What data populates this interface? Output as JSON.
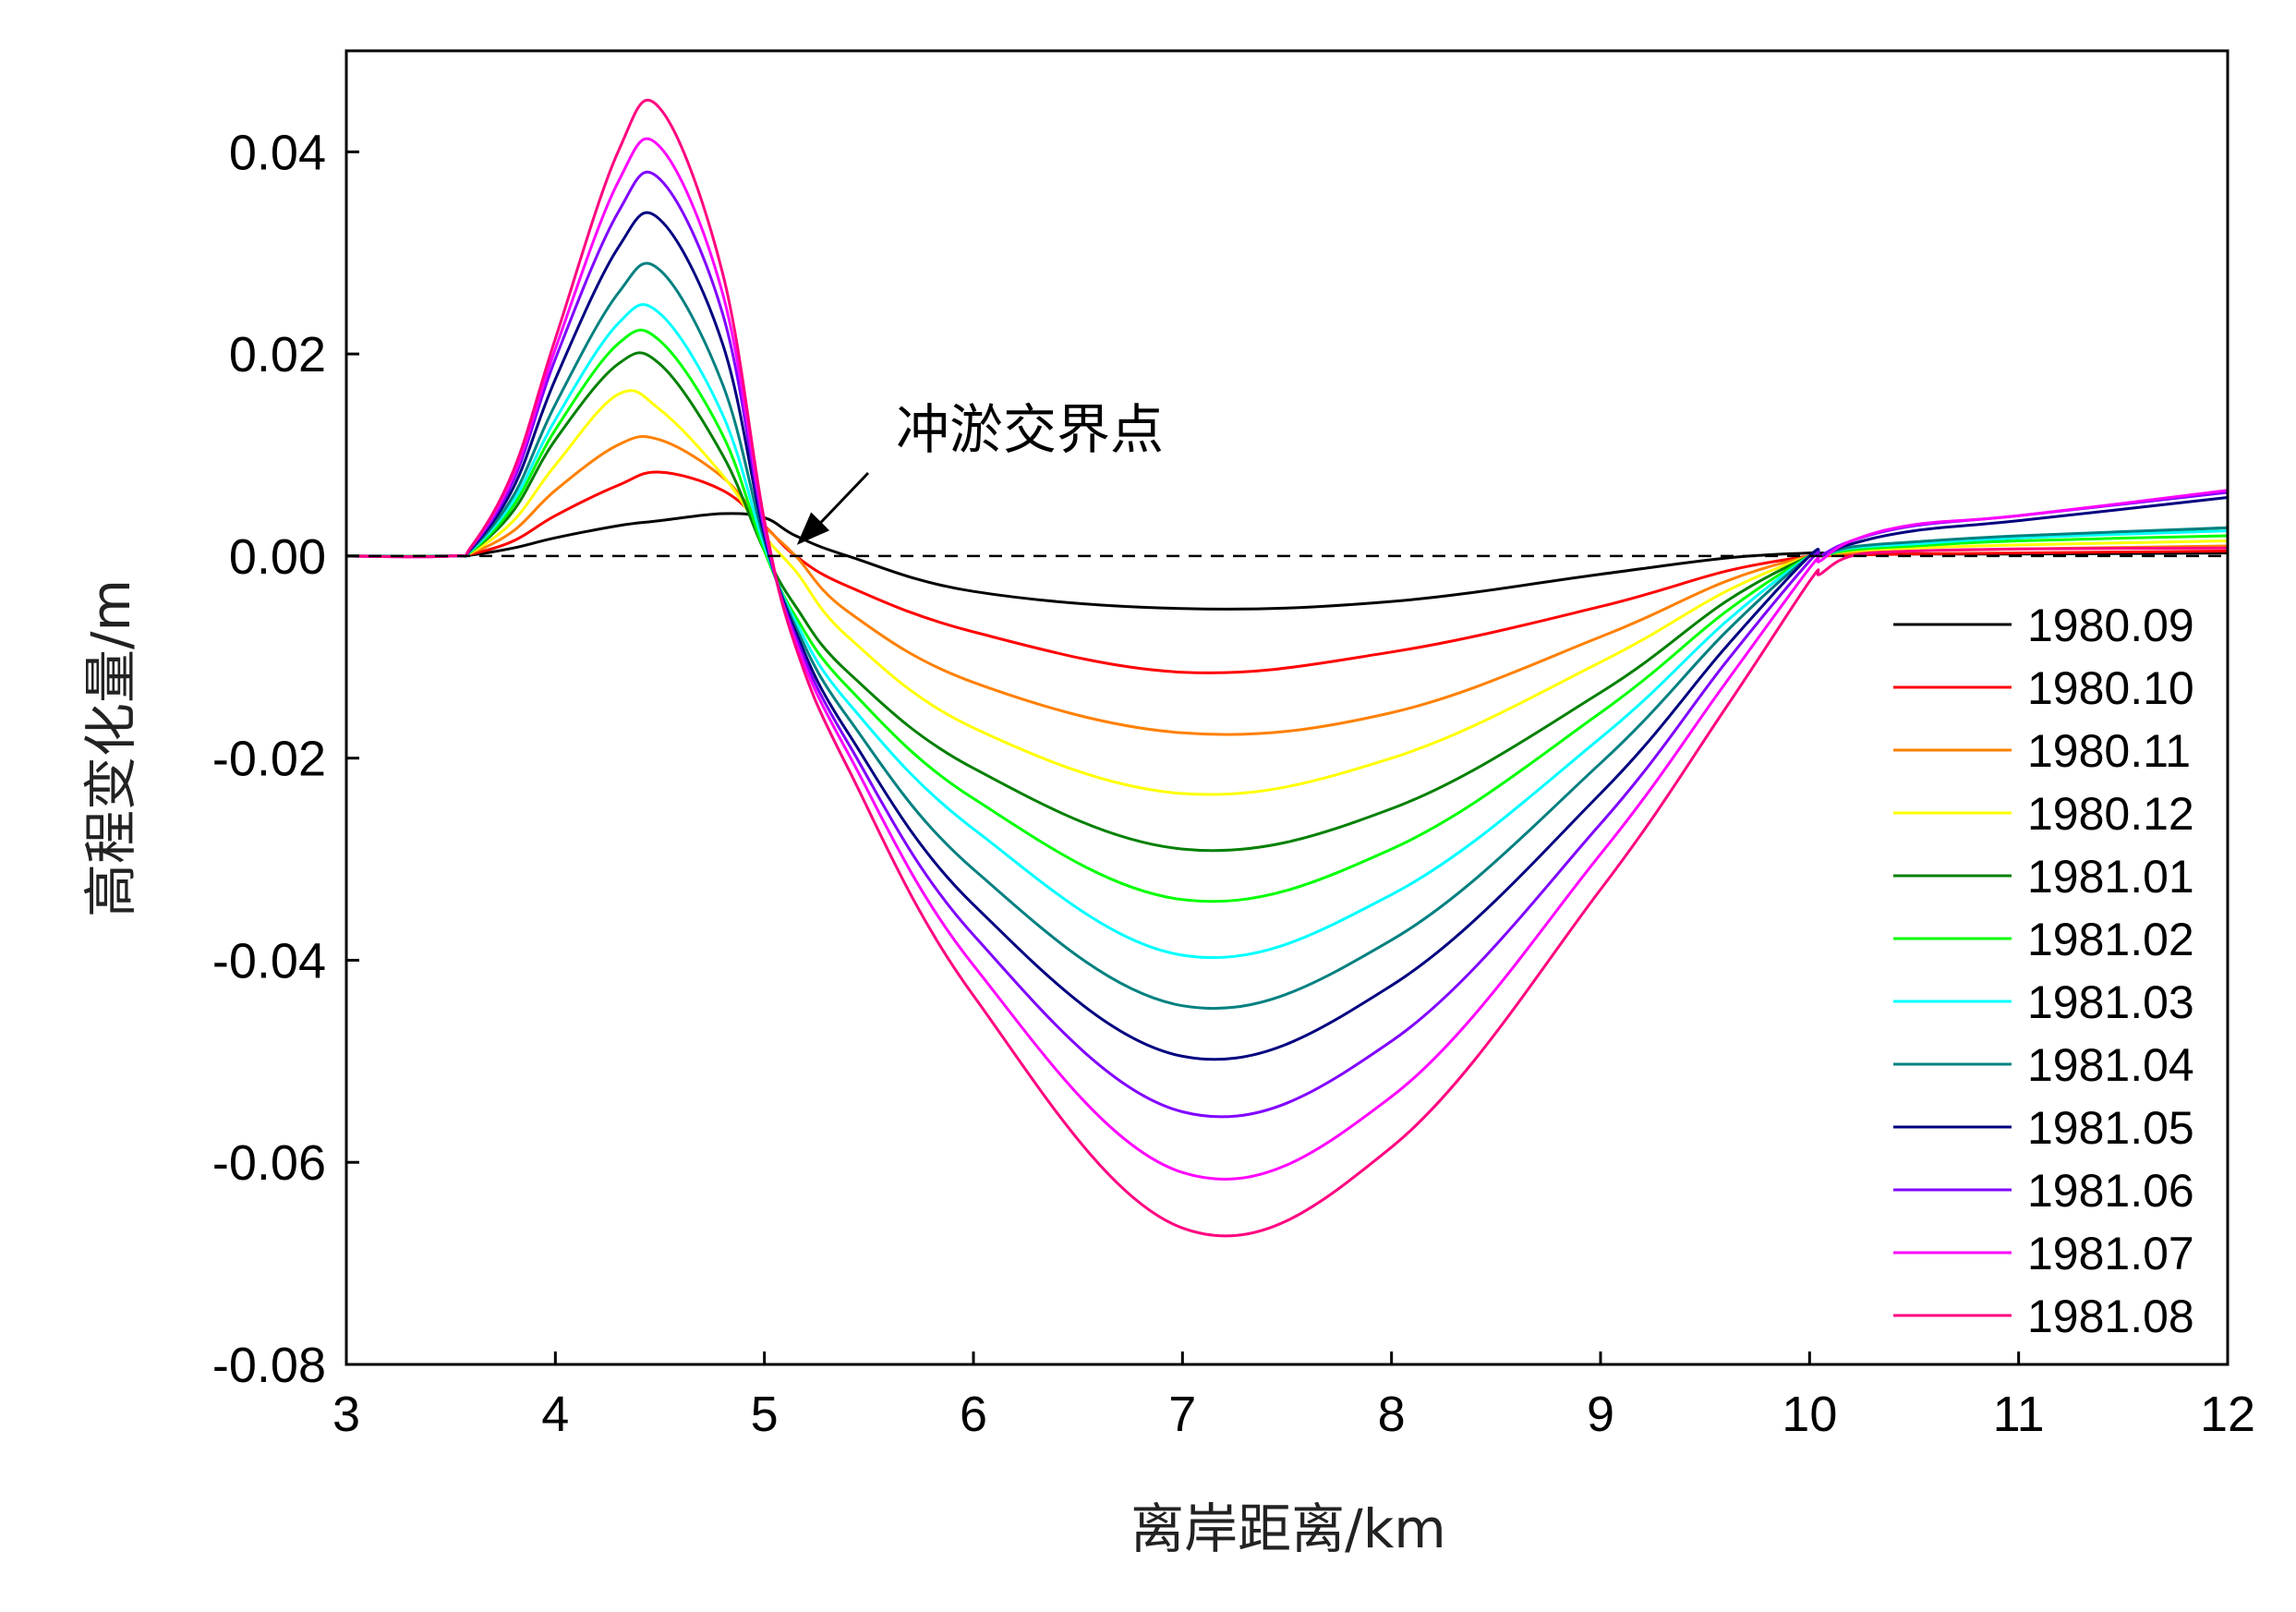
{
  "chart_data": {
    "type": "line",
    "title": "",
    "xlabel": "离岸距离/km",
    "ylabel": "高程变化量/m",
    "xlim": [
      3,
      12
    ],
    "ylim": [
      -0.08,
      0.05
    ],
    "x_ticks": [
      "3",
      "4",
      "5",
      "6",
      "7",
      "8",
      "9",
      "10",
      "11",
      "12"
    ],
    "y_ticks": [
      "0.04",
      "0.02",
      "0.00",
      "-0.02",
      "-0.04",
      "-0.06",
      "-0.08"
    ],
    "y_tick_values": [
      0.04,
      0.02,
      0.0,
      -0.02,
      -0.04,
      -0.06,
      -0.08
    ],
    "grid": false,
    "legend_position": "lower-right",
    "reference_line": {
      "y": 0.0,
      "style": "dashed"
    },
    "annotation": {
      "text": "冲淤交界点",
      "x": 5.12,
      "y": 0.0
    },
    "x": [
      3.0,
      3.5,
      3.6,
      3.8,
      4.0,
      4.3,
      4.5,
      4.8,
      5.0,
      5.15,
      5.4,
      6.0,
      7.0,
      8.0,
      9.0,
      9.6,
      10.0,
      10.05,
      10.2,
      10.5,
      11.0,
      12.0
    ],
    "series": [
      {
        "name": "1980.09",
        "color": "#000000",
        "values": [
          0,
          0,
          0.0001,
          0.0008,
          0.0018,
          0.003,
          0.0035,
          0.0042,
          0.0038,
          0.002,
          0.0,
          -0.0035,
          -0.0052,
          -0.0045,
          -0.0018,
          -0.0002,
          0.0003,
          0.0003,
          0.0002,
          0.0002,
          0.0002,
          0.0003
        ]
      },
      {
        "name": "1980.10",
        "color": "#ff0000",
        "values": [
          0,
          0,
          0.0002,
          0.0015,
          0.004,
          0.007,
          0.0083,
          0.0065,
          0.003,
          0.0,
          -0.003,
          -0.0075,
          -0.0115,
          -0.0095,
          -0.005,
          -0.0015,
          0.0,
          0.0,
          0.0001,
          0.0002,
          0.0003,
          0.0005
        ]
      },
      {
        "name": "1980.11",
        "color": "#ff8000",
        "values": [
          0,
          0,
          0.0003,
          0.0025,
          0.0065,
          0.011,
          0.0115,
          0.0078,
          0.003,
          0.0,
          -0.0055,
          -0.0125,
          -0.0175,
          -0.0155,
          -0.008,
          -0.0025,
          0.0,
          0.0,
          0.0003,
          0.0005,
          0.0007,
          0.001
        ]
      },
      {
        "name": "1980.12",
        "color": "#ffff00",
        "values": [
          0,
          0,
          0.0004,
          0.0035,
          0.009,
          0.016,
          0.0145,
          0.008,
          0.002,
          -0.0015,
          -0.008,
          -0.017,
          -0.0235,
          -0.02,
          -0.0105,
          -0.0035,
          0.0,
          0.0,
          0.0005,
          0.0008,
          0.0011,
          0.0015
        ]
      },
      {
        "name": "1981.01",
        "color": "#008000",
        "values": [
          0,
          0,
          0.0005,
          0.0045,
          0.0115,
          0.019,
          0.019,
          0.01,
          0.0005,
          -0.005,
          -0.0115,
          -0.021,
          -0.029,
          -0.025,
          -0.0135,
          -0.0045,
          0.0,
          0.0,
          0.0007,
          0.0012,
          0.0018,
          0.0028
        ]
      },
      {
        "name": "1981.02",
        "color": "#00ff00",
        "values": [
          0,
          0,
          0.0005,
          0.005,
          0.0125,
          0.021,
          0.0213,
          0.012,
          0.0005,
          -0.006,
          -0.013,
          -0.024,
          -0.034,
          -0.029,
          -0.0155,
          -0.0055,
          0.0,
          0.0,
          0.0006,
          0.001,
          0.0015,
          0.002
        ]
      },
      {
        "name": "1981.03",
        "color": "#00ffff",
        "values": [
          0,
          0,
          0.0006,
          0.0055,
          0.0135,
          0.023,
          0.024,
          0.014,
          0.001,
          -0.0065,
          -0.0145,
          -0.027,
          -0.0395,
          -0.0335,
          -0.018,
          -0.0065,
          0.0,
          0.0,
          0.0008,
          0.0012,
          0.0018,
          0.0025
        ]
      },
      {
        "name": "1981.04",
        "color": "#008080",
        "values": [
          0,
          0,
          0.0007,
          0.006,
          0.015,
          0.026,
          0.0283,
          0.017,
          0.0015,
          -0.007,
          -0.016,
          -0.031,
          -0.0445,
          -0.038,
          -0.0205,
          -0.0075,
          0.0,
          0.0,
          0.0009,
          0.0014,
          0.002,
          0.0028
        ]
      },
      {
        "name": "1981.05",
        "color": "#000080",
        "values": [
          0,
          0,
          0.0008,
          0.0068,
          0.0175,
          0.0305,
          0.0333,
          0.021,
          0.002,
          -0.0075,
          -0.0175,
          -0.0345,
          -0.0495,
          -0.0425,
          -0.0235,
          -0.009,
          0.0,
          0.0,
          0.0012,
          0.0025,
          0.0035,
          0.0058
        ]
      },
      {
        "name": "1981.06",
        "color": "#8000ff",
        "values": [
          0,
          0,
          0.0009,
          0.0075,
          0.0195,
          0.034,
          0.0373,
          0.024,
          0.0025,
          -0.008,
          -0.0185,
          -0.0375,
          -0.055,
          -0.048,
          -0.0265,
          -0.0105,
          -0.0005,
          0.0,
          0.0015,
          0.003,
          0.004,
          0.0063
        ]
      },
      {
        "name": "1981.07",
        "color": "#ff00ff",
        "values": [
          0,
          0,
          0.001,
          0.008,
          0.0205,
          0.037,
          0.0405,
          0.026,
          0.003,
          -0.0085,
          -0.0195,
          -0.0405,
          -0.061,
          -0.0535,
          -0.0295,
          -0.0125,
          -0.0012,
          -0.0005,
          0.0015,
          0.0031,
          0.004,
          0.0065
        ]
      },
      {
        "name": "1981.08",
        "color": "#ff0080",
        "values": [
          0,
          0,
          0.001,
          0.0085,
          0.0215,
          0.04,
          0.0443,
          0.028,
          0.0035,
          -0.009,
          -0.021,
          -0.0435,
          -0.0665,
          -0.0585,
          -0.033,
          -0.015,
          -0.0025,
          -0.0018,
          0.0,
          0.0005,
          0.0007,
          0.0008
        ]
      }
    ]
  }
}
